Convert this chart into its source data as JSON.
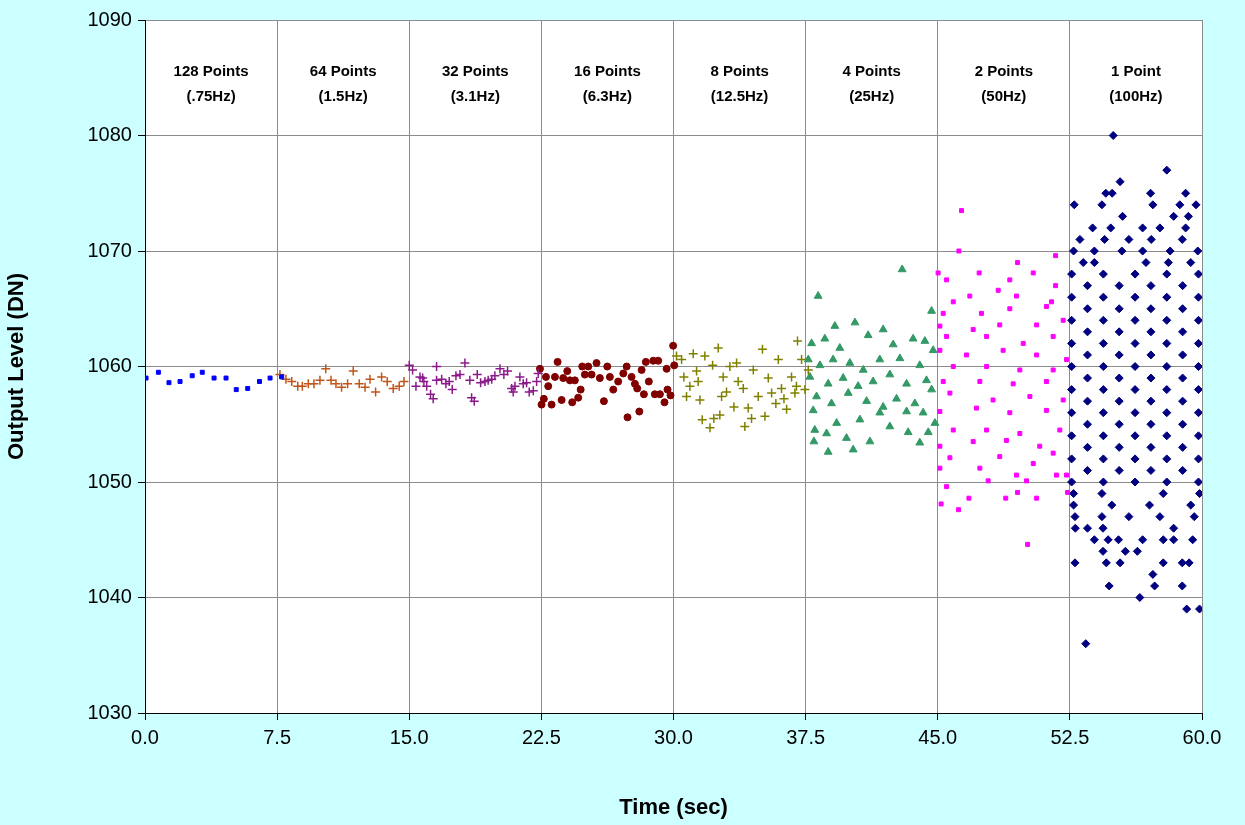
{
  "chart_data": {
    "type": "scatter",
    "xlabel": "Time (sec)",
    "ylabel": "Output Level (DN)",
    "xlim": [
      0,
      60
    ],
    "ylim": [
      1030,
      1090
    ],
    "xticks": [
      {
        "value": 0,
        "label": "0.0"
      },
      {
        "value": 7.5,
        "label": "7.5"
      },
      {
        "value": 15,
        "label": "15.0"
      },
      {
        "value": 22.5,
        "label": "22.5"
      },
      {
        "value": 30,
        "label": "30.0"
      },
      {
        "value": 37.5,
        "label": "37.5"
      },
      {
        "value": 45,
        "label": "45.0"
      },
      {
        "value": 52.5,
        "label": "52.5"
      },
      {
        "value": 60,
        "label": "60.0"
      }
    ],
    "yticks": [
      1030,
      1040,
      1050,
      1060,
      1070,
      1080,
      1090
    ],
    "grid": true,
    "legend": false,
    "annotations": [
      "128 Points\n(.75Hz)",
      "64 Points\n(1.5Hz)",
      "32 Points\n(3.1Hz)",
      "16 Points\n(6.3Hz)",
      "8 Points\n(12.5Hz)",
      "4 Points\n(25Hz)",
      "2 Points\n(50Hz)",
      "1 Point\n(100Hz)"
    ],
    "series": [
      {
        "color": "#0000ff",
        "marker": "square",
        "x": [
          0.06,
          0.76,
          1.36,
          1.99,
          2.68,
          3.25,
          3.92,
          4.6,
          5.18,
          5.83,
          6.5,
          7.1,
          7.76
        ],
        "values": [
          1059.0,
          1059.5,
          1058.6,
          1058.7,
          1059.2,
          1059.5,
          1059.0,
          1059.0,
          1058.0,
          1058.1,
          1058.7,
          1059.0,
          1059.1
        ]
      },
      {
        "color": "#c0561a",
        "marker": "cross",
        "x": [
          7.66,
          8.0,
          8.33,
          8.67,
          8.93,
          9.27,
          9.59,
          9.93,
          10.26,
          10.56,
          10.84,
          11.16,
          11.5,
          11.82,
          12.16,
          12.49,
          12.77,
          13.09,
          13.43,
          13.75,
          14.09,
          14.43,
          14.7
        ],
        "values": [
          1059.3,
          1058.9,
          1058.7,
          1058.3,
          1058.3,
          1058.5,
          1058.5,
          1058.8,
          1059.8,
          1058.8,
          1058.5,
          1058.2,
          1058.5,
          1059.6,
          1058.5,
          1058.2,
          1058.9,
          1057.8,
          1059.1,
          1058.7,
          1058.1,
          1058.3,
          1058.7
        ]
      },
      {
        "color": "#8b1a8b",
        "marker": "cross",
        "x": [
          15.0,
          15.19,
          15.38,
          15.61,
          15.76,
          15.83,
          15.99,
          16.21,
          16.36,
          16.55,
          16.55,
          16.84,
          17.08,
          17.27,
          17.44,
          17.65,
          17.88,
          18.16,
          18.44,
          18.54,
          18.69,
          18.86,
          19.05,
          19.3,
          19.48,
          19.68,
          19.86,
          20.15,
          20.37,
          20.58,
          20.81,
          20.9,
          21.0,
          21.28,
          21.47,
          21.66,
          21.81,
          22.04,
          22.23,
          22.32
        ],
        "values": [
          1060.1,
          1059.7,
          1058.3,
          1059.1,
          1059.0,
          1058.7,
          1058.3,
          1057.6,
          1057.2,
          1060.0,
          1058.8,
          1058.9,
          1058.5,
          1058.7,
          1058.0,
          1059.2,
          1059.3,
          1060.3,
          1058.8,
          1057.3,
          1057.0,
          1059.3,
          1058.6,
          1058.7,
          1058.8,
          1058.9,
          1059.2,
          1059.8,
          1059.3,
          1059.6,
          1058.1,
          1057.8,
          1058.3,
          1059.1,
          1058.5,
          1058.6,
          1057.8,
          1057.9,
          1058.7,
          1059.4
        ]
      },
      {
        "color": "#800000",
        "marker": "circle",
        "x": [
          22.42,
          22.51,
          22.64,
          22.76,
          22.89,
          23.08,
          23.27,
          23.42,
          23.65,
          23.74,
          23.97,
          24.12,
          24.25,
          24.4,
          24.59,
          24.73,
          24.82,
          24.97,
          25.16,
          25.35,
          25.63,
          25.82,
          26.05,
          26.24,
          26.39,
          26.58,
          26.86,
          27.15,
          27.34,
          27.39,
          27.62,
          27.81,
          27.94,
          28.06,
          28.19,
          28.32,
          28.43,
          28.6,
          28.85,
          28.94,
          29.13,
          29.23,
          29.49,
          29.61,
          29.66,
          29.83,
          29.98,
          30.04
        ],
        "values": [
          1059.8,
          1056.7,
          1057.2,
          1059.1,
          1058.3,
          1056.7,
          1059.1,
          1060.4,
          1057.1,
          1059.0,
          1059.6,
          1058.8,
          1056.9,
          1058.8,
          1057.3,
          1058.0,
          1060.0,
          1059.3,
          1060.0,
          1059.3,
          1060.3,
          1059.0,
          1057.0,
          1060.0,
          1059.1,
          1058.0,
          1058.7,
          1059.4,
          1060.0,
          1055.6,
          1059.1,
          1058.5,
          1058.1,
          1056.1,
          1059.7,
          1057.6,
          1060.4,
          1058.7,
          1060.5,
          1057.6,
          1060.5,
          1057.6,
          1056.9,
          1059.8,
          1058.0,
          1057.5,
          1061.8,
          1060.1
        ]
      },
      {
        "color": "#808000",
        "marker": "cross",
        "x": [
          30.17,
          30.46,
          30.59,
          30.74,
          30.93,
          31.12,
          31.31,
          31.5,
          31.63,
          31.78,
          32.07,
          32.22,
          32.29,
          32.54,
          32.63,
          32.82,
          33.01,
          33.2,
          33.43,
          33.67,
          33.96,
          34.05,
          34.24,
          34.43,
          34.53,
          34.81,
          35.05,
          35.19,
          35.38,
          35.57,
          35.81,
          35.95,
          36.13,
          36.27,
          36.42,
          36.7,
          36.89,
          37.04,
          37.27,
          37.46,
          37.65,
          36.98,
          33.58,
          32.73,
          31.4
        ],
        "values": [
          1060.9,
          1060.6,
          1059.1,
          1057.4,
          1058.3,
          1061.1,
          1059.6,
          1057.1,
          1055.4,
          1060.9,
          1054.7,
          1060.1,
          1055.5,
          1061.6,
          1055.8,
          1059.1,
          1057.8,
          1060.0,
          1056.5,
          1058.7,
          1058.1,
          1054.8,
          1056.4,
          1055.5,
          1059.7,
          1057.4,
          1061.5,
          1055.7,
          1059.0,
          1057.7,
          1056.8,
          1060.6,
          1058.1,
          1057.2,
          1056.3,
          1059.1,
          1057.7,
          1062.2,
          1060.6,
          1058.0,
          1059.7,
          1058.3,
          1060.3,
          1057.4,
          1058.7
        ]
      },
      {
        "color": "#339966",
        "marker": "triangle",
        "x": [
          38.21,
          42.98,
          44.65,
          40.3,
          39.16,
          41.9,
          37.84,
          38.59,
          39.44,
          41.05,
          42.47,
          43.6,
          44.27,
          37.65,
          38.31,
          39.06,
          40.01,
          40.77,
          41.71,
          42.85,
          43.98,
          44.74,
          37.74,
          38.78,
          39.63,
          40.48,
          41.33,
          42.28,
          43.23,
          44.36,
          38.12,
          38.97,
          39.92,
          40.96,
          41.9,
          42.66,
          43.7,
          44.65,
          37.93,
          39.26,
          40.58,
          41.71,
          42.28,
          43.23,
          44.17,
          44.84,
          38.02,
          39.82,
          41.15,
          43.32,
          44.46,
          37.97,
          38.78,
          40.2,
          43.98,
          38.69
        ],
        "values": [
          1066.1,
          1068.4,
          1064.8,
          1063.8,
          1063.5,
          1063.2,
          1062.0,
          1062.4,
          1061.6,
          1062.7,
          1061.9,
          1062.4,
          1062.2,
          1060.6,
          1060.1,
          1060.6,
          1060.3,
          1059.7,
          1060.6,
          1060.7,
          1060.1,
          1061.4,
          1059.1,
          1058.5,
          1059.0,
          1058.3,
          1058.7,
          1059.3,
          1058.5,
          1058.8,
          1057.4,
          1056.8,
          1057.7,
          1057.0,
          1056.5,
          1057.2,
          1056.8,
          1058.0,
          1056.2,
          1055.1,
          1055.4,
          1056.0,
          1054.8,
          1056.1,
          1056.0,
          1055.1,
          1054.5,
          1053.8,
          1053.5,
          1054.3,
          1054.3,
          1053.5,
          1052.6,
          1052.8,
          1053.4,
          1054.2
        ]
      },
      {
        "color": "#ff00ff",
        "marker": "square",
        "x": [
          46.35,
          46.2,
          49.53,
          51.69,
          45.02,
          47.35,
          50.42,
          45.5,
          49.09,
          48.43,
          51.69,
          46.82,
          49.47,
          45.88,
          51.46,
          45.31,
          47.48,
          49.09,
          51.17,
          45.12,
          47.01,
          48.52,
          50.61,
          52.12,
          45.5,
          47.77,
          49.85,
          51.55,
          45.12,
          46.63,
          48.71,
          50.61,
          52.31,
          45.88,
          47.77,
          49.66,
          51.55,
          45.31,
          47.39,
          49.28,
          51.17,
          45.69,
          48.14,
          50.23,
          52.12,
          45.12,
          47.2,
          49.09,
          51.17,
          45.88,
          47.77,
          49.66,
          51.93,
          45.12,
          47.01,
          48.9,
          50.79,
          45.69,
          48.52,
          50.42,
          45.12,
          47.39,
          49.47,
          51.74,
          45.5,
          47.86,
          50.04,
          52.31,
          46.77,
          48.86,
          50.61,
          45.19,
          46.18,
          49.53,
          50.1,
          52.37,
          51.55
        ],
        "values": [
          1073.5,
          1070.0,
          1069.0,
          1069.6,
          1068.1,
          1068.1,
          1068.1,
          1067.5,
          1067.5,
          1066.6,
          1067.0,
          1066.1,
          1066.1,
          1065.6,
          1065.6,
          1064.6,
          1064.6,
          1065.0,
          1065.2,
          1063.5,
          1063.2,
          1063.6,
          1063.6,
          1064.0,
          1062.6,
          1062.6,
          1062.0,
          1062.6,
          1061.4,
          1061.0,
          1061.4,
          1061.0,
          1060.6,
          1060.0,
          1060.0,
          1059.7,
          1059.7,
          1058.7,
          1058.7,
          1058.5,
          1058.7,
          1057.7,
          1057.1,
          1057.4,
          1057.1,
          1056.1,
          1056.4,
          1056.0,
          1056.2,
          1054.5,
          1054.5,
          1054.2,
          1054.5,
          1053.1,
          1053.5,
          1053.6,
          1053.1,
          1052.1,
          1052.2,
          1051.6,
          1051.2,
          1051.2,
          1050.6,
          1050.6,
          1049.6,
          1050.1,
          1050.1,
          1050.6,
          1048.6,
          1048.6,
          1048.6,
          1048.1,
          1047.6,
          1049.1,
          1044.6,
          1049.1,
          1052.5
        ]
      },
      {
        "color": "#000080",
        "marker": "diamond",
        "x": [
          54.96,
          58.0,
          55.35,
          54.54,
          54.9,
          57.08,
          59.07,
          52.75,
          54.32,
          57.21,
          58.74,
          59.66,
          55.49,
          58.39,
          59.23,
          53.79,
          54.82,
          56.63,
          57.61,
          59.07,
          53.07,
          54.47,
          55.85,
          57.12,
          58.88,
          52.71,
          53.89,
          55.45,
          56.63,
          58.19,
          59.76,
          53.26,
          53.89,
          56.82,
          58.09,
          59.36,
          52.6,
          54.4,
          56.2,
          58.0,
          59.8,
          53.5,
          55.3,
          57.1,
          58.9,
          52.6,
          54.4,
          56.2,
          58.0,
          59.8,
          53.5,
          55.3,
          57.1,
          58.9,
          52.6,
          54.4,
          56.2,
          58.0,
          59.8,
          53.5,
          55.3,
          57.1,
          58.9,
          52.6,
          54.4,
          56.2,
          58.0,
          59.8,
          53.5,
          55.3,
          57.1,
          58.9,
          52.6,
          54.4,
          56.2,
          58.0,
          59.8,
          53.5,
          55.3,
          57.1,
          58.9,
          52.6,
          54.4,
          56.2,
          58.0,
          59.8,
          53.5,
          55.3,
          57.1,
          58.9,
          52.6,
          54.4,
          56.2,
          58.0,
          59.8,
          53.5,
          55.3,
          57.1,
          58.9,
          52.6,
          54.4,
          56.2,
          58.0,
          59.8,
          53.5,
          55.3,
          57.1,
          58.9,
          52.6,
          54.4,
          56.2,
          58.0,
          59.8,
          53.5,
          55.3,
          57.1,
          58.9,
          52.6,
          54.4,
          56.2,
          58.0,
          59.8,
          52.71,
          54.32,
          57.8,
          59.86,
          52.71,
          54.88,
          57.02,
          59.36,
          52.79,
          54.32,
          55.85,
          57.61,
          59.56,
          52.81,
          53.5,
          54.38,
          58.39,
          53.89,
          54.67,
          55.26,
          56.63,
          57.8,
          58.39,
          59.47,
          54.38,
          55.65,
          56.33,
          52.79,
          54.57,
          55.35,
          57.8,
          58.88,
          59.27,
          57.21,
          54.73,
          57.31,
          58.88,
          56.47,
          59.13,
          59.86,
          53.4
        ],
        "values": [
          1080,
          1077,
          1076,
          1075,
          1075,
          1075,
          1075,
          1074,
          1074,
          1074,
          1074,
          1074,
          1073,
          1073,
          1073,
          1072,
          1072,
          1072,
          1072,
          1072,
          1071,
          1071,
          1071,
          1071,
          1071,
          1070,
          1070,
          1070,
          1070,
          1070,
          1070,
          1069,
          1069,
          1069,
          1069,
          1069,
          1068,
          1068,
          1068,
          1068,
          1068,
          1067,
          1067,
          1067,
          1067,
          1066,
          1066,
          1066,
          1066,
          1066,
          1065,
          1065,
          1065,
          1065,
          1064,
          1064,
          1064,
          1064,
          1064,
          1063,
          1063,
          1063,
          1063,
          1062,
          1062,
          1062,
          1062,
          1062,
          1061,
          1061,
          1061,
          1061,
          1060,
          1060,
          1060,
          1060,
          1060,
          1059,
          1059,
          1059,
          1059,
          1058,
          1058,
          1058,
          1058,
          1058,
          1057,
          1057,
          1057,
          1057,
          1056,
          1056,
          1056,
          1056,
          1056,
          1055,
          1055,
          1055,
          1055,
          1054,
          1054,
          1054,
          1054,
          1054,
          1053,
          1053,
          1053,
          1053,
          1052,
          1052,
          1052,
          1052,
          1052,
          1051,
          1051,
          1051,
          1051,
          1050,
          1050,
          1050,
          1050,
          1050,
          1049,
          1049,
          1049,
          1049,
          1048,
          1048,
          1048,
          1048,
          1047,
          1047,
          1047,
          1047,
          1047,
          1046,
          1046,
          1046,
          1046,
          1045,
          1045,
          1045,
          1045,
          1045,
          1045,
          1045,
          1044,
          1044,
          1044,
          1043,
          1043,
          1043,
          1043,
          1043,
          1043,
          1042,
          1041,
          1041,
          1041,
          1040,
          1039,
          1039,
          1036
        ]
      }
    ]
  }
}
